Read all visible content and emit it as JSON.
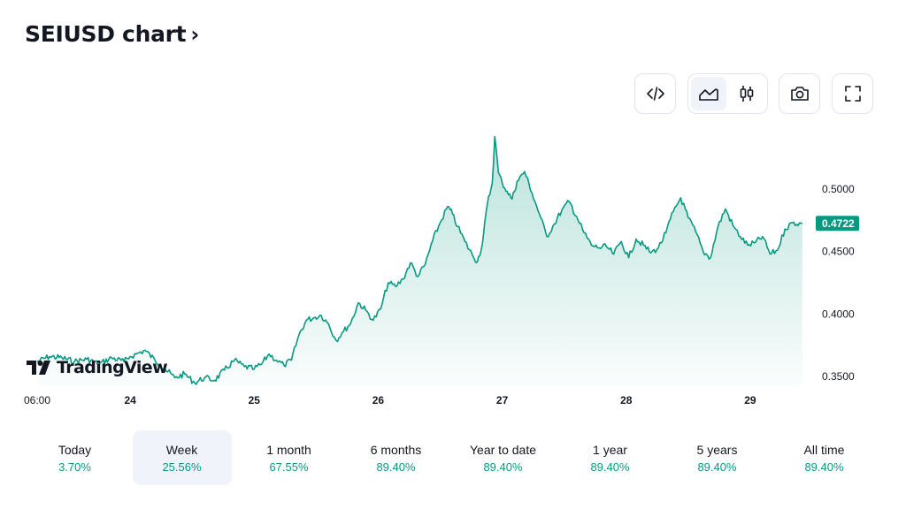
{
  "header": {
    "title": "SEIUSD chart",
    "chevron": "›"
  },
  "toolbar": {
    "buttons": [
      {
        "icon": "embed-code-icon"
      },
      {
        "icon": "area-chart-icon",
        "active": true
      },
      {
        "icon": "candlestick-icon"
      },
      {
        "icon": "camera-icon"
      },
      {
        "icon": "fullscreen-icon"
      }
    ]
  },
  "logo": {
    "text": "TradingView"
  },
  "periods": [
    {
      "label": "Today",
      "value": "3.70%"
    },
    {
      "label": "Week",
      "value": "25.56%",
      "active": true
    },
    {
      "label": "1 month",
      "value": "67.55%"
    },
    {
      "label": "6 months",
      "value": "89.40%"
    },
    {
      "label": "Year to date",
      "value": "89.40%"
    },
    {
      "label": "1 year",
      "value": "89.40%"
    },
    {
      "label": "5 years",
      "value": "89.40%"
    },
    {
      "label": "All time",
      "value": "89.40%"
    }
  ],
  "colors": {
    "line": "#089981",
    "accent": "#089981",
    "text": "#131722",
    "axis": "#131722"
  },
  "chart_data": {
    "type": "area",
    "xlabel": "",
    "ylabel": "",
    "x_ticks": [
      "06:00",
      "24",
      "25",
      "26",
      "27",
      "28",
      "29"
    ],
    "x_tick_positions": [
      0.25,
      1,
      2,
      3,
      4,
      5,
      6
    ],
    "y_ticks": [
      "0.3500",
      "0.4000",
      "0.4500",
      "0.5000"
    ],
    "y_tick_values": [
      0.35,
      0.4,
      0.45,
      0.5
    ],
    "ylim": [
      0.343,
      0.548
    ],
    "xlim": [
      0.2,
      6.5
    ],
    "last_price": "0.4722",
    "last_value": 0.4722,
    "grid": false,
    "series": [
      {
        "x": [
          0.25,
          0.35,
          0.45,
          0.55,
          0.65,
          0.75,
          0.85,
          0.95,
          1.0,
          1.05,
          1.12,
          1.2,
          1.28,
          1.36,
          1.44,
          1.52,
          1.6,
          1.68,
          1.76,
          1.84,
          1.92,
          2.0,
          2.06,
          2.12,
          2.18,
          2.24,
          2.3,
          2.36,
          2.42,
          2.48,
          2.54,
          2.6,
          2.66,
          2.72,
          2.78,
          2.84,
          2.9,
          2.96,
          3.02,
          3.08,
          3.14,
          3.2,
          3.26,
          3.32,
          3.38,
          3.44,
          3.5,
          3.56,
          3.6,
          3.64,
          3.7,
          3.76,
          3.8,
          3.84,
          3.88,
          3.92,
          3.94,
          3.97,
          4.0,
          4.04,
          4.08,
          4.12,
          4.18,
          4.24,
          4.3,
          4.36,
          4.42,
          4.48,
          4.54,
          4.6,
          4.66,
          4.72,
          4.78,
          4.84,
          4.9,
          4.96,
          5.02,
          5.08,
          5.14,
          5.2,
          5.26,
          5.32,
          5.38,
          5.44,
          5.5,
          5.56,
          5.62,
          5.68,
          5.74,
          5.8,
          5.86,
          5.92,
          5.98,
          6.04,
          6.1,
          6.16,
          6.22,
          6.28,
          6.34,
          6.42
        ],
        "values": [
          0.362,
          0.366,
          0.365,
          0.362,
          0.364,
          0.36,
          0.365,
          0.362,
          0.366,
          0.368,
          0.371,
          0.363,
          0.356,
          0.349,
          0.352,
          0.345,
          0.349,
          0.347,
          0.355,
          0.363,
          0.358,
          0.356,
          0.36,
          0.368,
          0.363,
          0.359,
          0.363,
          0.383,
          0.395,
          0.397,
          0.399,
          0.392,
          0.379,
          0.386,
          0.393,
          0.409,
          0.403,
          0.395,
          0.404,
          0.425,
          0.422,
          0.428,
          0.441,
          0.43,
          0.44,
          0.459,
          0.473,
          0.486,
          0.48,
          0.47,
          0.458,
          0.447,
          0.442,
          0.456,
          0.488,
          0.505,
          0.542,
          0.513,
          0.505,
          0.498,
          0.492,
          0.506,
          0.514,
          0.497,
          0.48,
          0.462,
          0.472,
          0.483,
          0.49,
          0.478,
          0.465,
          0.455,
          0.453,
          0.454,
          0.448,
          0.458,
          0.445,
          0.46,
          0.455,
          0.449,
          0.453,
          0.465,
          0.482,
          0.493,
          0.477,
          0.466,
          0.45,
          0.445,
          0.47,
          0.484,
          0.471,
          0.462,
          0.455,
          0.457,
          0.462,
          0.448,
          0.451,
          0.468,
          0.473,
          0.4722
        ]
      }
    ]
  }
}
